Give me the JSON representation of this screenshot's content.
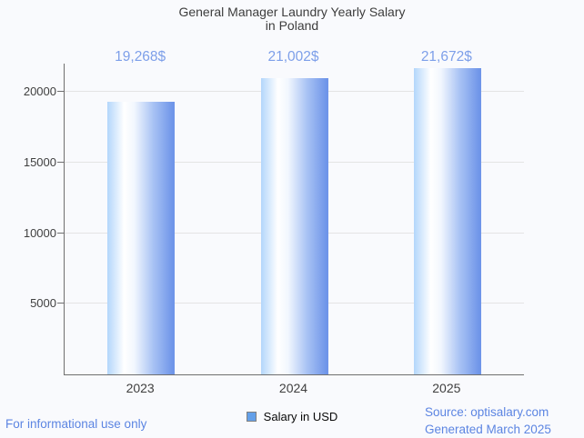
{
  "chart_data": {
    "type": "bar",
    "title": "General Manager Laundry Yearly Salary",
    "subtitle": "in Poland",
    "categories": [
      "2023",
      "2024",
      "2025"
    ],
    "series": [
      {
        "name": "Salary in USD",
        "values": [
          19268,
          21002,
          21672
        ]
      }
    ],
    "value_labels": [
      "19,268$",
      "21,002$",
      "21,672$"
    ],
    "xlabel": "",
    "ylabel": "",
    "ylim": [
      0,
      22000
    ],
    "yticks": [
      5000,
      10000,
      15000,
      20000
    ],
    "ytick_labels": [
      "5000",
      "10000",
      "15000",
      "20000"
    ],
    "grid": true,
    "legend_position": "bottom"
  },
  "legend": {
    "label": "Salary in USD",
    "swatch_fill": "#64a0e9",
    "swatch_border": "#808080"
  },
  "footer": {
    "disclaimer": "For informational use only",
    "source": "Source: optisalary.com",
    "generated": "Generated March 2025"
  },
  "colors": {
    "background": "#f9fafd",
    "title_text": "#3d3d3d",
    "axis_text": "#3f3f3f",
    "axis_line": "#6f6f6f",
    "gridline": "#e4e4e4",
    "value_label": "#7d9fe9",
    "footer_text": "#5c85e2",
    "bar_gradient": [
      "#b3d6fb",
      "#ffffff",
      "#f2f7fe",
      "#a9c3f4",
      "#6f95e9"
    ]
  }
}
